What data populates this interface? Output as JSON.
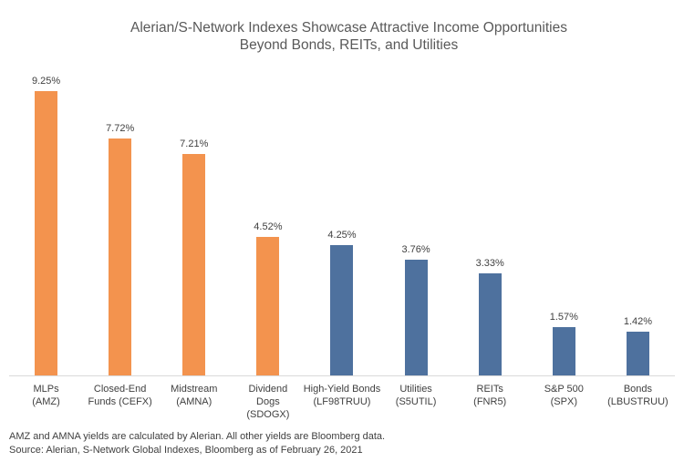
{
  "chart_data": {
    "type": "bar",
    "title_lines": [
      "Alerian/S-Network Indexes Showcase Attractive Income Opportunities",
      "Beyond Bonds, REITs, and Utilities"
    ],
    "categories": [
      "MLPs\n(AMZ)",
      "Closed-End\nFunds (CEFX)",
      "Midstream\n(AMNA)",
      "Dividend\nDogs\n(SDOGX)",
      "High-Yield Bonds\n(LF98TRUU)",
      "Utilities\n(S5UTIL)",
      "REITs\n(FNR5)",
      "S&P 500\n(SPX)",
      "Bonds\n(LBUSTRUU)"
    ],
    "values": [
      9.25,
      7.72,
      7.21,
      4.52,
      4.25,
      3.76,
      3.33,
      1.57,
      1.42
    ],
    "value_labels": [
      "9.25%",
      "7.72%",
      "7.21%",
      "4.52%",
      "4.25%",
      "3.76%",
      "3.33%",
      "1.57%",
      "1.42%"
    ],
    "bar_colors": [
      "#F3934E",
      "#F3934E",
      "#F3934E",
      "#F3934E",
      "#4E719E",
      "#4E719E",
      "#4E719E",
      "#4E719E",
      "#4E719E"
    ],
    "series_colors": {
      "alerian_orange": "#F3934E",
      "benchmark_blue": "#4E719E"
    },
    "ylabel": "",
    "xlabel": "",
    "ylim": [
      0,
      9.9
    ],
    "grid": false,
    "legend": "none",
    "axis_line_color": "#D9D9D9",
    "title_color": "#595959",
    "label_color": "#404040"
  },
  "footnotes": {
    "note": "AMZ and AMNA yields are calculated by Alerian. All other yields are Bloomberg data.",
    "source": "Source: Alerian, S-Network Global Indexes, Bloomberg as of February 26, 2021"
  }
}
